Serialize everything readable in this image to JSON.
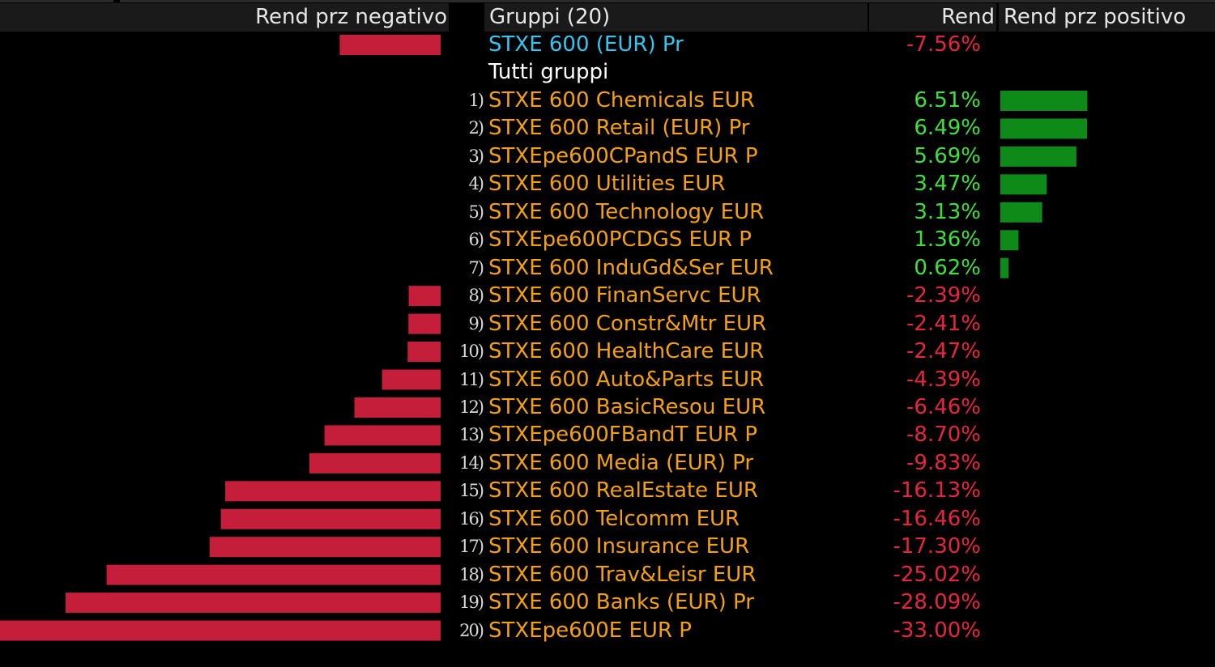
{
  "header": {
    "neg_label": "Rend prz negativo",
    "groups_label": "Gruppi (20)",
    "return_label": "Rend",
    "pos_label": "Rend prz positivo"
  },
  "index": {
    "name": "STXE 600 (EUR) Pr",
    "value": -7.56,
    "value_text": "-7.56%"
  },
  "group_label": "Tutti gruppi",
  "colors": {
    "negative_bar": "#c41e3a",
    "positive_bar": "#0e8a18",
    "negative_text": "#e8253f",
    "positive_text": "#3ee03e",
    "name_text": "#f5a00f",
    "index_text": "#33c6f0"
  },
  "chart_data": {
    "type": "bar",
    "orientation": "horizontal",
    "categories": [
      "STXE 600 Chemicals EUR",
      "STXE 600 Retail (EUR) Pr",
      "STXEpe600CPandS EUR P",
      "STXE 600 Utilities EUR",
      "STXE 600 Technology EUR",
      "STXEpe600PCDGS EUR P",
      "STXE 600 InduGd&Ser EUR",
      "STXE 600 FinanServc EUR",
      "STXE 600 Constr&Mtr EUR",
      "STXE 600 HealthCare EUR",
      "STXE 600 Auto&Parts EUR",
      "STXE 600 BasicResou EUR",
      "STXEpe600FBandT EUR P",
      "STXE 600 Media (EUR) Pr",
      "STXE 600 RealEstate EUR",
      "STXE 600 Telcomm EUR",
      "STXE 600 Insurance EUR",
      "STXE 600 Trav&Leisr EUR",
      "STXE 600 Banks (EUR) Pr",
      "STXEpe600E EUR P"
    ],
    "ranks": [
      "1)",
      "2)",
      "3)",
      "4)",
      "5)",
      "6)",
      "7)",
      "8)",
      "9)",
      "10)",
      "11)",
      "12)",
      "13)",
      "14)",
      "15)",
      "16)",
      "17)",
      "18)",
      "19)",
      "20)"
    ],
    "values": [
      6.51,
      6.49,
      5.69,
      3.47,
      3.13,
      1.36,
      0.62,
      -2.39,
      -2.41,
      -2.47,
      -4.39,
      -6.46,
      -8.7,
      -9.83,
      -16.13,
      -16.46,
      -17.3,
      -25.02,
      -28.09,
      -33.0
    ],
    "value_labels": [
      "6.51%",
      "6.49%",
      "5.69%",
      "3.47%",
      "3.13%",
      "1.36%",
      "0.62%",
      "-2.39%",
      "-2.41%",
      "-2.47%",
      "-4.39%",
      "-6.46%",
      "-8.70%",
      "-9.83%",
      "-16.13%",
      "-16.46%",
      "-17.30%",
      "-25.02%",
      "-28.09%",
      "-33.00%"
    ],
    "xlim_negative": [
      -33.0,
      0
    ],
    "xlim_positive": [
      0,
      16.0
    ]
  }
}
